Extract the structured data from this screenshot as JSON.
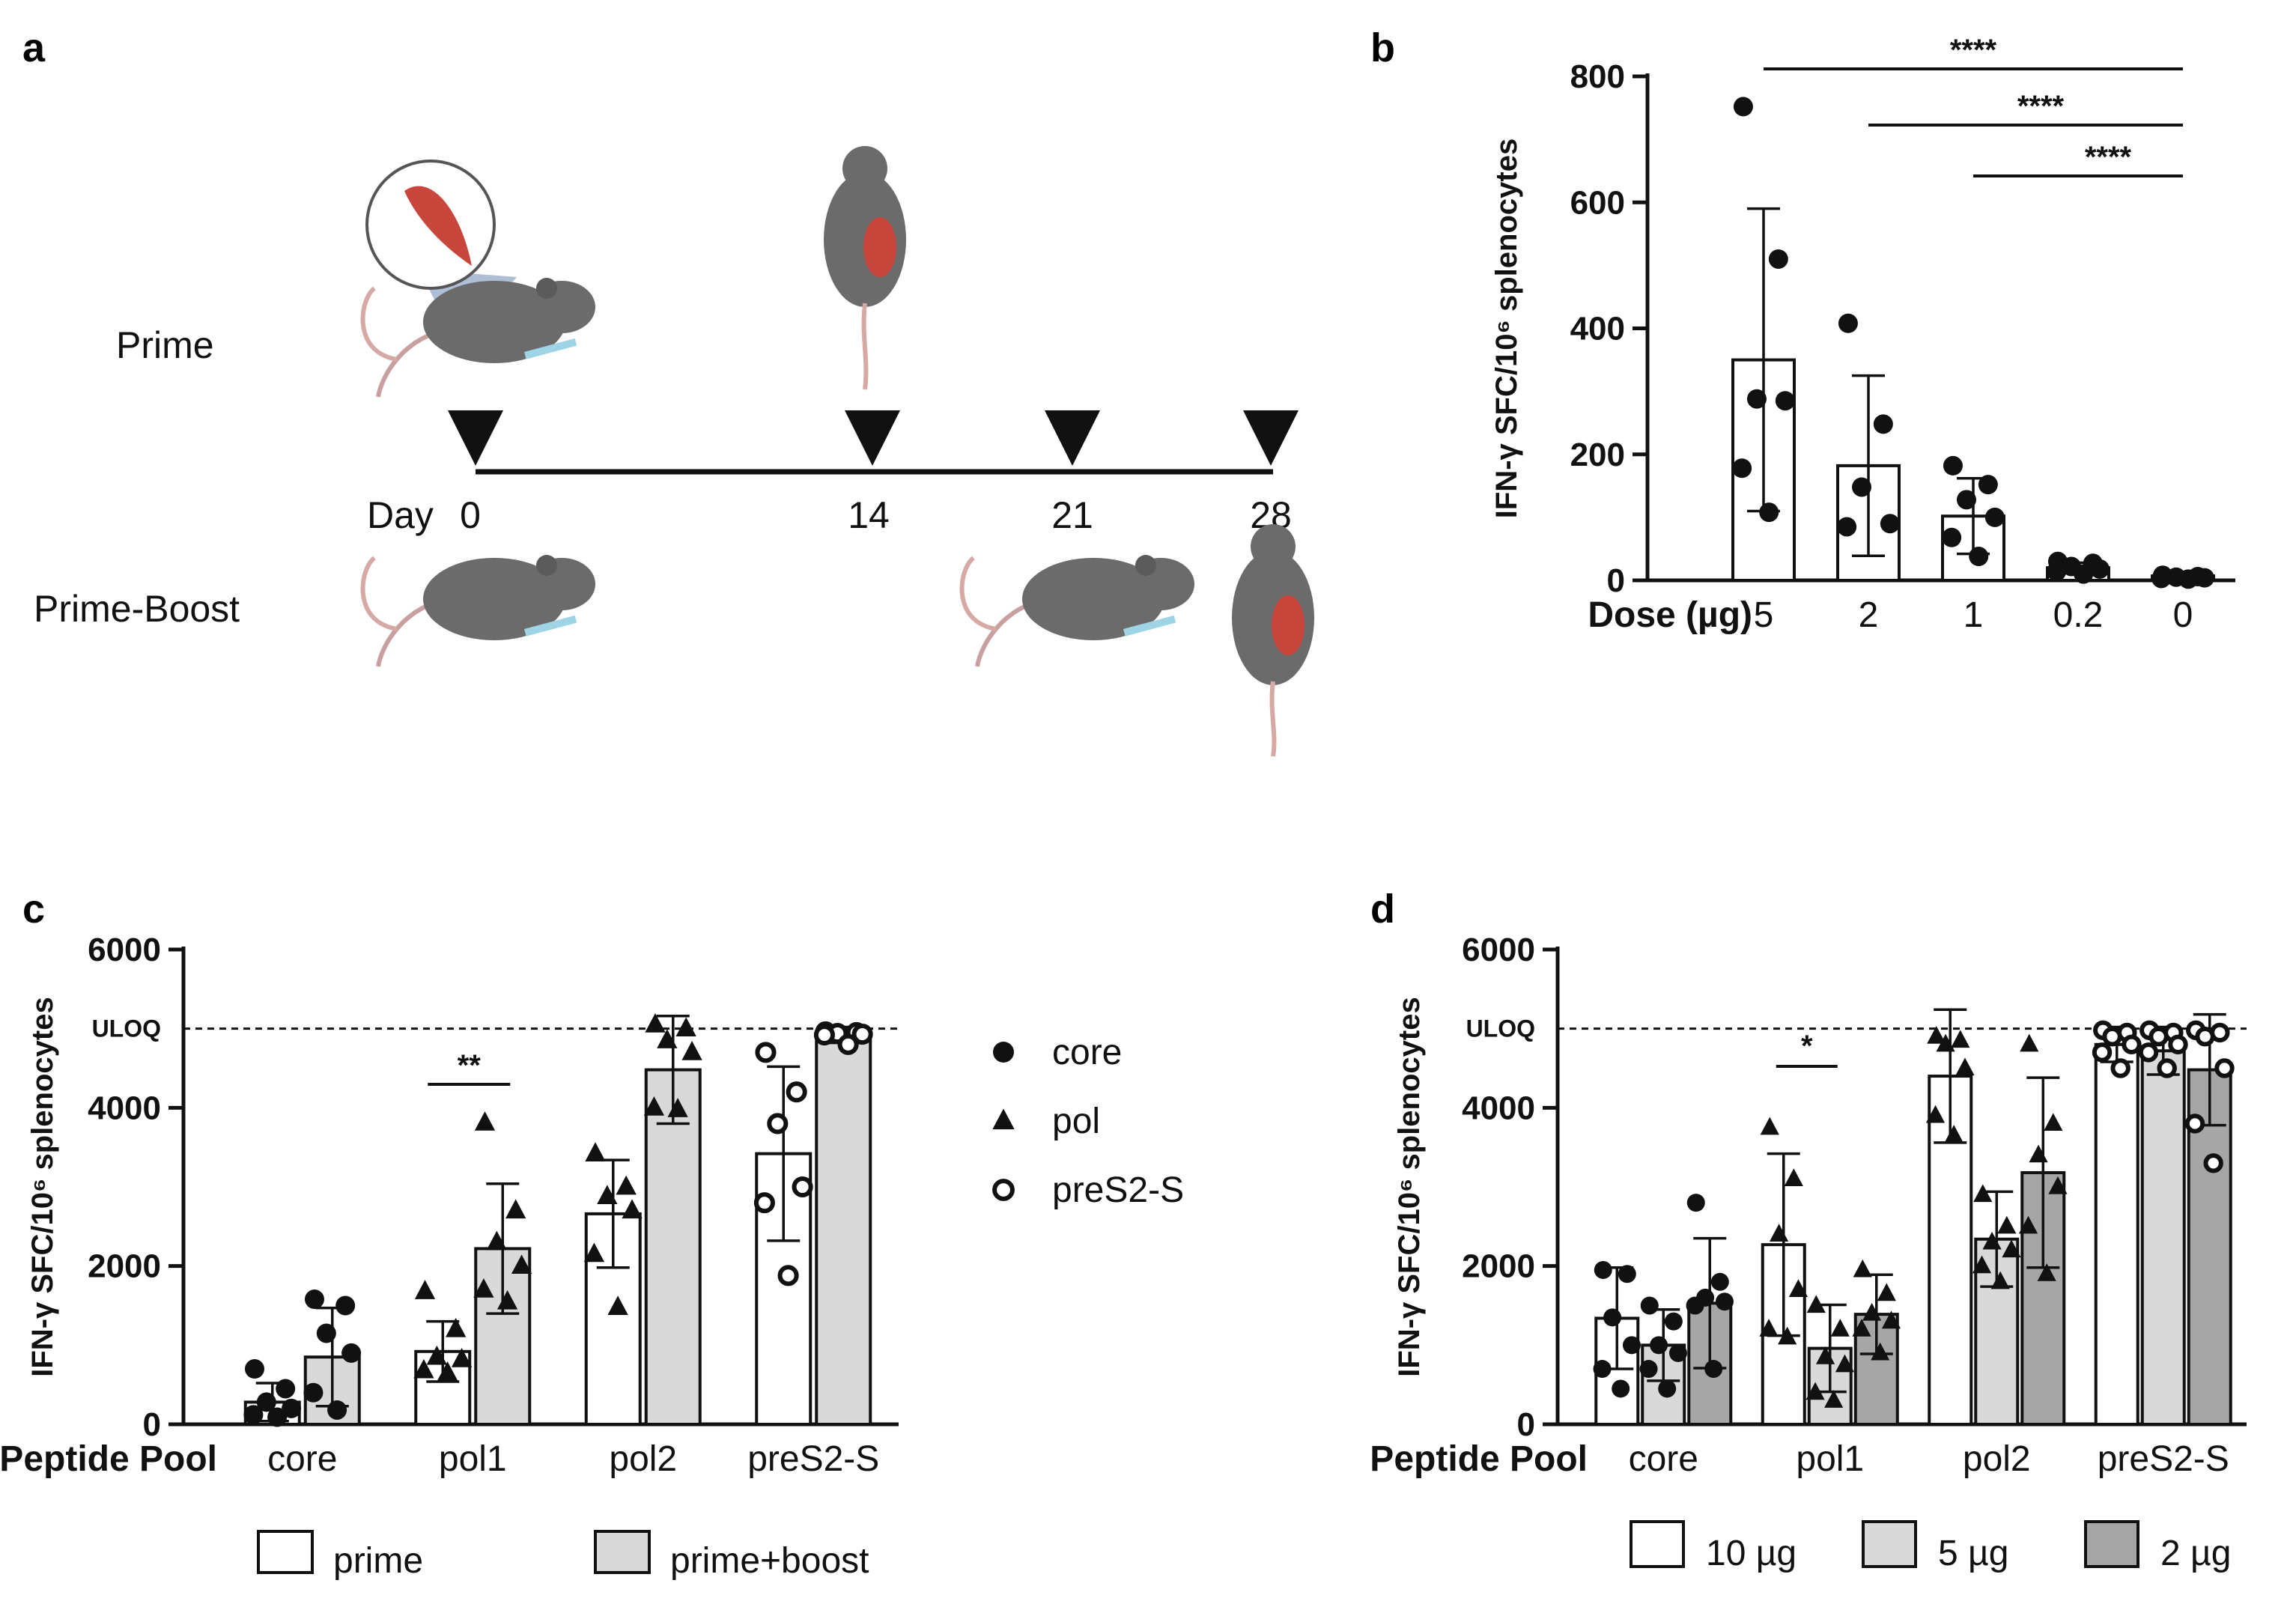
{
  "panels": {
    "a": "a",
    "b": "b",
    "c": "c",
    "d": "d"
  },
  "schematic": {
    "prime_label": "Prime",
    "prime_boost_label": "Prime-Boost",
    "day_label": "Day",
    "days": [
      "0",
      "14",
      "21",
      "28"
    ]
  },
  "chart_data": [
    {
      "id": "b",
      "type": "bar",
      "ylabel": "IFN-γ SFC/10⁶ splenocytes",
      "xlabel": "Dose (µg)",
      "categories": [
        "5",
        "2",
        "1",
        "0.2",
        "0"
      ],
      "ylim": [
        0,
        800
      ],
      "yticks": [
        "0",
        "200",
        "400",
        "600",
        "800"
      ],
      "series": [
        {
          "name": "dose",
          "fill": "#ffffff",
          "values": [
            350,
            182,
            102,
            20,
            7
          ],
          "errors": [
            240,
            143,
            60,
            8,
            5
          ],
          "marker": "circle-filled",
          "points": [
            [
              752,
              510,
              288,
              285,
              178,
              108
            ],
            [
              408,
              248,
              148,
              90,
              85
            ],
            [
              182,
              152,
              128,
              100,
              68,
              38
            ],
            [
              30,
              27,
              22,
              18,
              14,
              10
            ],
            [
              8,
              6,
              5,
              4,
              3,
              2
            ]
          ]
        }
      ],
      "significance": [
        {
          "from": "5",
          "to": "0",
          "label": "****"
        },
        {
          "from": "2",
          "to": "0",
          "label": "****"
        },
        {
          "from": "1",
          "to": "0",
          "label": "****"
        }
      ]
    },
    {
      "id": "c",
      "type": "bar",
      "ylabel": "IFN-γ SFC/10⁶ splenocytes",
      "xlabel": "Peptide Pool",
      "categories": [
        "core",
        "pol1",
        "pol2",
        "preS2-S"
      ],
      "ylim": [
        0,
        6000
      ],
      "yticks": [
        "0",
        "2000",
        "4000",
        "6000"
      ],
      "reference_line": {
        "label": "ULOQ",
        "value": 5000
      },
      "series": [
        {
          "name": "prime",
          "fill": "#ffffff",
          "values": [
            280,
            920,
            2660,
            3420
          ],
          "errors": [
            240,
            380,
            680,
            1100
          ],
          "points": [
            [
              700,
              450,
              280,
              200,
              120,
              90
            ],
            [
              1680,
              1200,
              850,
              820,
              680,
              650
            ],
            [
              3420,
              3000,
              2880,
              2700,
              2150,
              1480
            ],
            [
              4700,
              4200,
              3800,
              3000,
              2800,
              1880
            ]
          ]
        },
        {
          "name": "prime+boost",
          "fill": "#d9d9d9",
          "values": [
            850,
            2220,
            4480,
            4920
          ],
          "errors": [
            620,
            820,
            680,
            100
          ],
          "points": [
            [
              1580,
              1500,
              1150,
              900,
              400,
              180
            ],
            [
              3810,
              2700,
              2300,
              2000,
              1700,
              1550
            ],
            [
              5050,
              5000,
              4850,
              4700,
              4000,
              3980
            ],
            [
              4960,
              4950,
              4940,
              4930,
              4920,
              4800
            ]
          ]
        }
      ],
      "markers_by_pool": [
        "circle-filled",
        "triangle-filled",
        "triangle-filled",
        "circle-open"
      ],
      "significance": [
        {
          "category": "pol1",
          "label": "**"
        }
      ],
      "legend": {
        "markers": [
          {
            "marker": "circle-filled",
            "label": "core"
          },
          {
            "marker": "triangle-filled",
            "label": "pol"
          },
          {
            "marker": "circle-open",
            "label": "preS2-S"
          }
        ],
        "fills": [
          {
            "fill": "#ffffff",
            "label": "prime"
          },
          {
            "fill": "#d9d9d9",
            "label": "prime+boost"
          }
        ]
      }
    },
    {
      "id": "d",
      "type": "bar",
      "ylabel": "IFN-γ SFC/10⁶ splenocytes",
      "xlabel": "Peptide Pool",
      "categories": [
        "core",
        "pol1",
        "pol2",
        "preS2-S"
      ],
      "ylim": [
        0,
        6000
      ],
      "yticks": [
        "0",
        "2000",
        "4000",
        "6000"
      ],
      "reference_line": {
        "label": "ULOQ",
        "value": 5000
      },
      "series": [
        {
          "name": "10 µg",
          "fill": "#ffffff",
          "values": [
            1340,
            2270,
            4400,
            4800
          ],
          "errors": [
            640,
            1150,
            840,
            220
          ],
          "points": [
            [
              1950,
              1900,
              1350,
              1000,
              700,
              450
            ],
            [
              3750,
              3100,
              2400,
              1700,
              1200,
              1100
            ],
            [
              4900,
              4850,
              4800,
              4500,
              3900,
              3650
            ],
            [
              4980,
              4950,
              4900,
              4800,
              4700,
              4500
            ]
          ]
        },
        {
          "name": "5 µg",
          "fill": "#d9d9d9",
          "values": [
            1000,
            960,
            2340,
            4720
          ],
          "errors": [
            450,
            550,
            600,
            300
          ],
          "points": [
            [
              1500,
              1300,
              1000,
              900,
              700,
              450
            ],
            [
              1500,
              1200,
              850,
              750,
              400,
              300
            ],
            [
              2900,
              2500,
              2300,
              2200,
              2000,
              1800
            ],
            [
              4980,
              4950,
              4900,
              4800,
              4700,
              4500
            ]
          ]
        },
        {
          "name": "2 µg",
          "fill": "#a6a6a6",
          "values": [
            1530,
            1390,
            3180,
            4480
          ],
          "errors": [
            820,
            500,
            1200,
            700
          ],
          "points": [
            [
              2800,
              1800,
              1600,
              1550,
              1500,
              700
            ],
            [
              1950,
              1650,
              1400,
              1300,
              1200,
              900
            ],
            [
              4800,
              3800,
              3400,
              3000,
              2500,
              1900
            ],
            [
              4980,
              4950,
              4900,
              4500,
              3800,
              3300
            ]
          ]
        }
      ],
      "markers_by_pool": [
        "circle-filled",
        "triangle-filled",
        "triangle-filled",
        "circle-open"
      ],
      "significance": [
        {
          "category": "pol1",
          "label": "*"
        }
      ],
      "legend": {
        "fills": [
          {
            "fill": "#ffffff",
            "label": "10 µg"
          },
          {
            "fill": "#d9d9d9",
            "label": "5 µg"
          },
          {
            "fill": "#a6a6a6",
            "label": "2 µg"
          }
        ]
      }
    }
  ]
}
